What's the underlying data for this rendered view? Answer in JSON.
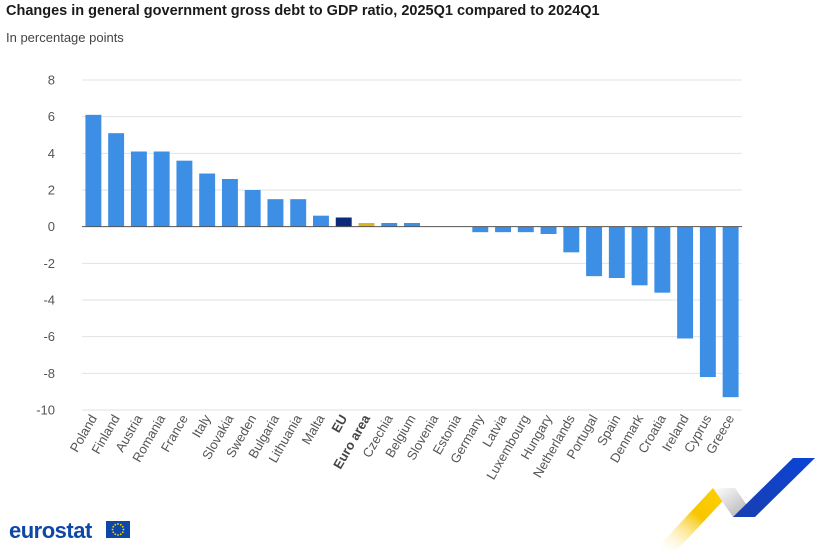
{
  "header": {
    "title": "Changes in general government gross debt to GDP ratio, 2025Q1 compared to 2024Q1",
    "subtitle": "In percentage points"
  },
  "logo": {
    "text": "eurostat",
    "icon": "eu-flag-icon"
  },
  "colors": {
    "country": "#3d8fe6",
    "eu": "#0b2a7a",
    "euro_area": "#d9b51e",
    "grid": "#e2e2e2",
    "baseline": "#555555"
  },
  "chart_data": {
    "type": "bar",
    "title": "Changes in general government gross debt to GDP ratio, 2025Q1 compared to 2024Q1",
    "subtitle": "In percentage points",
    "xlabel": "",
    "ylabel": "",
    "ylim": [
      -10,
      8
    ],
    "yticks": [
      8,
      6,
      4,
      2,
      0,
      -2,
      -4,
      -6,
      -8,
      -10
    ],
    "grid": true,
    "legend": "none",
    "categories": [
      "Poland",
      "Finland",
      "Austria",
      "Romania",
      "France",
      "Italy",
      "Slovakia",
      "Sweden",
      "Bulgaria",
      "Lithuania",
      "Malta",
      "EU",
      "Euro area",
      "Czechia",
      "Belgium",
      "Slovenia",
      "Estonia",
      "Germany",
      "Latvia",
      "Luxembourg",
      "Hungary",
      "Netherlands",
      "Portugal",
      "Spain",
      "Denmark",
      "Croatia",
      "Ireland",
      "Cyprus",
      "Greece"
    ],
    "values": [
      6.1,
      5.1,
      4.1,
      4.1,
      3.6,
      2.9,
      2.6,
      2.0,
      1.5,
      1.5,
      0.6,
      0.5,
      0.2,
      0.2,
      0.2,
      0.0,
      0.0,
      -0.3,
      -0.3,
      -0.3,
      -0.4,
      -1.4,
      -2.7,
      -2.8,
      -3.2,
      -3.6,
      -6.1,
      -8.2,
      -9.3
    ],
    "highlight": {
      "EU": "eu",
      "Euro area": "euro_area"
    }
  }
}
